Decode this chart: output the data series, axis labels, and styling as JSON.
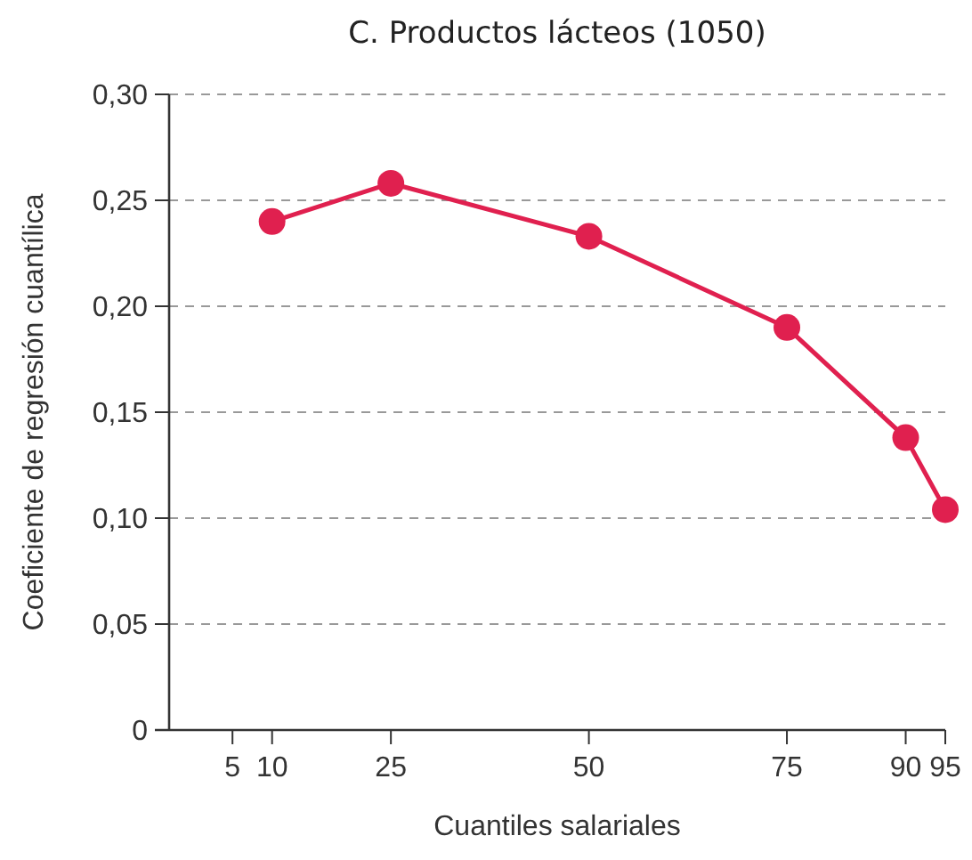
{
  "chart_data": {
    "type": "line",
    "title": "C. Productos lácteos (1050)",
    "xlabel": "Cuantiles salariales",
    "ylabel": "Coeficiente de regresión cuantílica",
    "x": [
      10,
      25,
      50,
      75,
      90,
      95
    ],
    "series": [
      {
        "color": "#e0204f",
        "values": [
          0.24,
          0.258,
          0.233,
          0.19,
          0.138,
          0.104
        ]
      }
    ],
    "xlim": [
      -3,
      95
    ],
    "xticks": [
      5,
      10,
      25,
      50,
      75,
      90,
      95
    ],
    "ylim": [
      0,
      0.3
    ],
    "yticks": [
      0,
      {
        "value": 0.05,
        "label": "0,05"
      },
      {
        "value": 0.1,
        "label": "0,10"
      },
      {
        "value": 0.15,
        "label": "0,15"
      },
      {
        "value": 0.2,
        "label": "0,20"
      },
      {
        "value": 0.25,
        "label": "0,25"
      },
      {
        "value": 0.3,
        "label": "0,30"
      }
    ],
    "grid": "y",
    "marker": "circle",
    "line_style": "solid"
  }
}
